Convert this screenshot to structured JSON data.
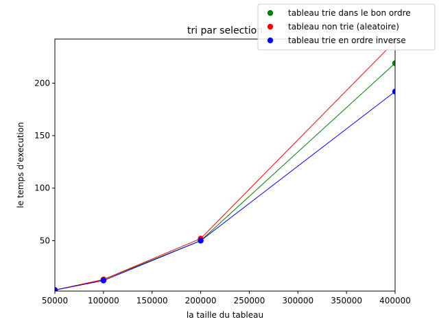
{
  "chart_data": {
    "type": "line",
    "title": "tri par selection",
    "xlabel": "la taille du tableau",
    "ylabel": "le temps d'execution",
    "xlim": [
      50000,
      400000
    ],
    "ylim": [
      2,
      242
    ],
    "xticks": [
      50000,
      100000,
      150000,
      200000,
      250000,
      300000,
      350000,
      400000
    ],
    "xtick_labels": [
      "50000",
      "100000",
      "150000",
      "200000",
      "250000",
      "300000",
      "350000",
      "400000"
    ],
    "yticks": [
      50,
      100,
      150,
      200
    ],
    "ytick_labels": [
      "50",
      "100",
      "150",
      "200"
    ],
    "grid": false,
    "legend_position": "top-right",
    "series": [
      {
        "name": "tableau trie dans le bon ordre",
        "color": "#008000",
        "x": [
          50000,
          100000,
          200000,
          400000
        ],
        "y": [
          3,
          13,
          50,
          219
        ]
      },
      {
        "name": "tableau non trie (aleatoire)",
        "color": "#ff0000",
        "x": [
          50000,
          100000,
          200000,
          400000
        ],
        "y": [
          3,
          13,
          52,
          240
        ]
      },
      {
        "name": "tableau trie en ordre inverse",
        "color": "#0000ff",
        "x": [
          50000,
          100000,
          200000,
          400000
        ],
        "y": [
          3,
          12,
          50,
          192
        ]
      }
    ]
  }
}
